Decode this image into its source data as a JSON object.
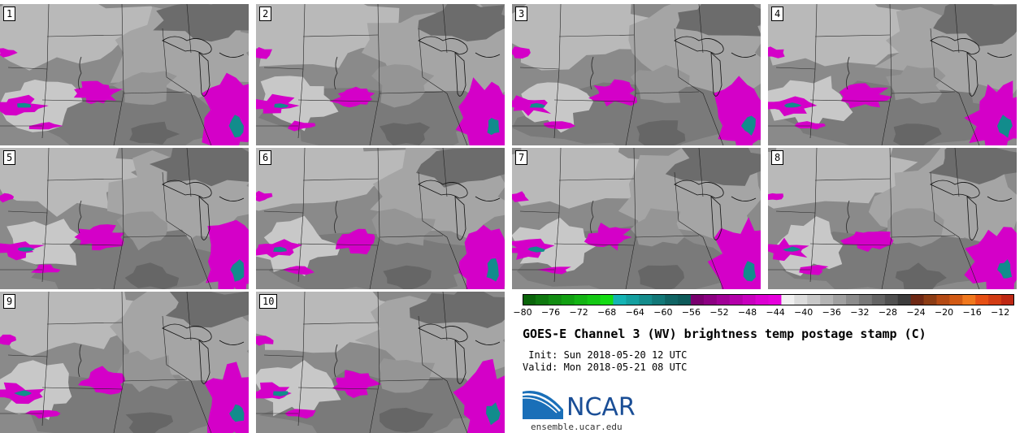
{
  "panels": [
    {
      "label": "1"
    },
    {
      "label": "2"
    },
    {
      "label": "3"
    },
    {
      "label": "4"
    },
    {
      "label": "5"
    },
    {
      "label": "6"
    },
    {
      "label": "7"
    },
    {
      "label": "8"
    },
    {
      "label": "9"
    },
    {
      "label": "10"
    }
  ],
  "colorbar": {
    "colors": [
      "#0a640a",
      "#0f780f",
      "#128c12",
      "#12a012",
      "#14b414",
      "#14c814",
      "#14dc14",
      "#14b4b4",
      "#14a0a0",
      "#148c8c",
      "#127878",
      "#106464",
      "#0e5a5a",
      "#78006e",
      "#8c0082",
      "#a00096",
      "#b400aa",
      "#c800be",
      "#dc00d2",
      "#e600dc",
      "#f0f0f0",
      "#dcdcdc",
      "#c8c8c8",
      "#b4b4b4",
      "#a0a0a0",
      "#8c8c8c",
      "#787878",
      "#646464",
      "#505050",
      "#3c3c3c",
      "#6e2814",
      "#8c3c14",
      "#b44a14",
      "#d25a14",
      "#f0781e",
      "#e65014",
      "#d23c14",
      "#be2814"
    ],
    "tick_labels": [
      "-80",
      "-76",
      "-72",
      "-68",
      "-64",
      "-60",
      "-56",
      "-52",
      "-48",
      "-44",
      "-40",
      "-36",
      "-32",
      "-28",
      "-24",
      "-20",
      "-16",
      "-12"
    ],
    "min": -80,
    "max": -10
  },
  "title": "GOES-E Channel 3 (WV) brightness temp postage stamp (C)",
  "init": " Init: Sun 2018-05-20 12 UTC",
  "valid": "Valid: Mon 2018-05-21 08 UTC",
  "logo": {
    "text": "NCAR",
    "url": "ensemble.ucar.edu"
  }
}
